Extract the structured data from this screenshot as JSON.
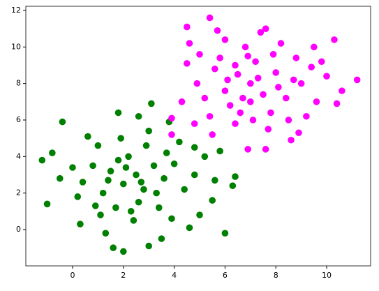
{
  "chart_data": {
    "type": "scatter",
    "xlim": [
      -1.84,
      11.73
    ],
    "ylim": [
      -1.99,
      12.23
    ],
    "xticks": [
      0,
      2,
      4,
      6,
      8,
      10
    ],
    "yticks": [
      0,
      2,
      4,
      6,
      8,
      10,
      12
    ],
    "grid": false,
    "series": [
      {
        "color": "#008000",
        "x": [
          1.6,
          2.0,
          3.0,
          -1.2,
          -1.0,
          6.0,
          6.3,
          6.4,
          5.8,
          -0.4,
          1.8,
          3.1,
          3.8,
          2.5,
          2.0,
          3.2,
          1.5,
          2.8,
          1.2,
          3.6,
          2.2,
          0.8,
          4.0,
          2.6,
          1.0,
          3.4,
          4.4,
          0.4,
          2.9,
          1.7,
          4.8,
          0.0,
          3.9,
          2.4,
          1.1,
          5.2,
          0.2,
          4.6,
          3.0,
          1.9,
          5.5,
          0.6,
          -0.5,
          2.1,
          3.7,
          1.4,
          2.7,
          3.3,
          4.2,
          0.9,
          5.0,
          1.3,
          2.6,
          -0.8,
          4.8,
          0.3,
          3.5,
          5.6,
          2.3,
          1.8
        ],
        "values": [
          -1.0,
          -1.2,
          -0.9,
          3.8,
          1.4,
          -0.2,
          2.4,
          2.9,
          4.3,
          5.9,
          6.4,
          6.9,
          5.9,
          3.0,
          2.5,
          3.5,
          3.2,
          2.2,
          2.0,
          2.8,
          4.0,
          3.5,
          3.6,
          1.5,
          4.6,
          1.2,
          2.2,
          2.6,
          4.6,
          1.2,
          3.0,
          3.4,
          0.6,
          0.5,
          0.8,
          4.0,
          1.8,
          0.1,
          5.4,
          5.0,
          1.6,
          5.1,
          2.8,
          3.4,
          4.2,
          2.7,
          2.6,
          2.0,
          4.8,
          1.3,
          0.8,
          -0.2,
          6.2,
          4.2,
          4.5,
          0.3,
          -0.5,
          2.7,
          1.0,
          3.8
        ]
      },
      {
        "color": "#ff00ff",
        "x": [
          11.2,
          10.3,
          4.5,
          5.4,
          6.9,
          8.6,
          4.5,
          3.9,
          3.9,
          10.4,
          4.8,
          7.0,
          6.5,
          7.5,
          6.0,
          8.0,
          7.2,
          6.2,
          8.4,
          5.6,
          7.8,
          6.8,
          9.0,
          5.2,
          8.8,
          6.4,
          7.4,
          9.6,
          5.0,
          7.7,
          6.0,
          9.4,
          5.4,
          8.2,
          10.0,
          6.7,
          7.1,
          8.5,
          5.8,
          7.9,
          9.2,
          4.9,
          6.4,
          7.3,
          8.1,
          5.5,
          9.8,
          6.6,
          4.3,
          8.9,
          7.6,
          6.1,
          10.6,
          5.7,
          8.7,
          6.9,
          7.6,
          9.5,
          4.6,
          7.0
        ],
        "values": [
          8.2,
          10.4,
          9.1,
          11.6,
          4.4,
          4.9,
          11.1,
          6.1,
          5.2,
          6.9,
          5.8,
          8.0,
          8.5,
          7.4,
          7.6,
          8.6,
          9.2,
          6.8,
          7.2,
          8.8,
          6.4,
          10.0,
          8.0,
          7.2,
          9.4,
          5.8,
          10.8,
          7.0,
          9.6,
          5.5,
          10.4,
          8.9,
          6.2,
          10.2,
          8.4,
          7.2,
          6.0,
          6.0,
          9.4,
          9.6,
          6.2,
          8.0,
          9.0,
          8.3,
          7.8,
          5.2,
          9.2,
          6.4,
          7.0,
          5.3,
          11.0,
          8.2,
          7.6,
          10.9,
          8.2,
          9.5,
          4.4,
          10.0,
          10.2,
          7.0
        ]
      }
    ]
  }
}
